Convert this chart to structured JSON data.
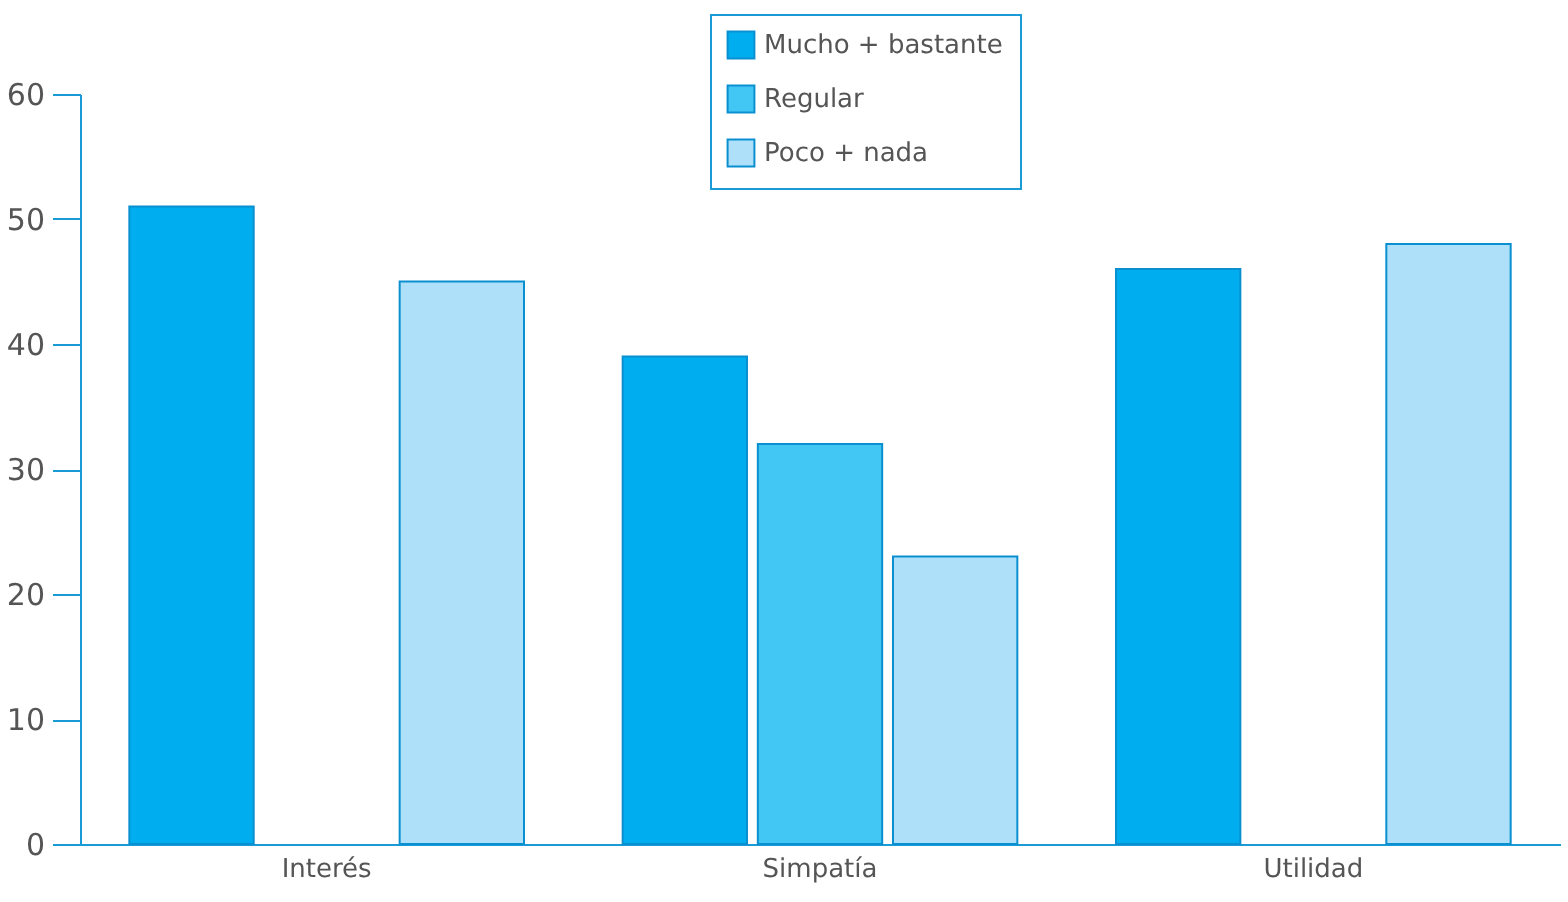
{
  "chart_data": {
    "type": "bar",
    "categories": [
      "Interés",
      "Simpatía",
      "Utilidad"
    ],
    "series": [
      {
        "name": "Mucho + bastante",
        "color": "#00aeef",
        "values": [
          51,
          39,
          46
        ]
      },
      {
        "name": "Regular",
        "color": "#42c6f4",
        "values": [
          null,
          32,
          null
        ]
      },
      {
        "name": "Poco + nada",
        "color": "#aee0fa",
        "values": [
          45,
          23,
          48
        ]
      }
    ],
    "ylim": [
      0,
      60
    ],
    "yticks": [
      0,
      10,
      20,
      30,
      40,
      50,
      60
    ],
    "grid": false,
    "legend": "top"
  }
}
